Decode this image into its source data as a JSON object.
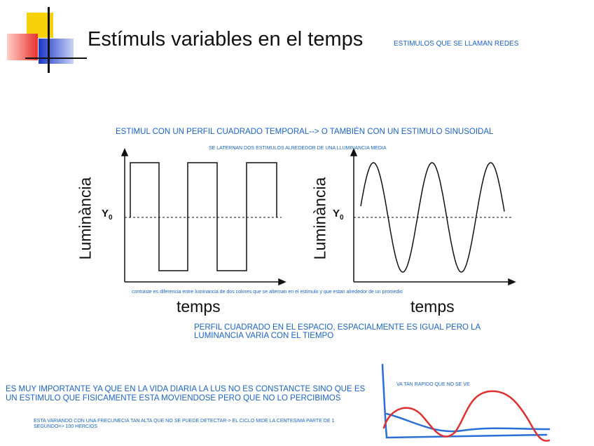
{
  "slide": {
    "title": "Estímuls variables en el temps",
    "header_note": "ESTIMULOS QUE SE LLAMAN REDES",
    "subtitle_note": "ESTIMUL CON UN PERFIL CUADRADO TEMPORAL--> O TAMBIÉN CON UN ESTIMULO SINUSOIDAL",
    "mean_note": "SE LATERNAN DOS ESTIMULOS ALREDEDOR DE UNA LLUMINANCIA MEDIA",
    "contrast_note": "contraste es diferencia entre luminancia de dos colores que se alternan en el estimulo y que estan alrededor de un promedio",
    "profile_note": "PERFIL CUADRADO EN EL ESPACIO, ESPACIALMENTE ES IGUAL PERO LA LUMINANCIA VARIA CON EL TIEMPO",
    "importance_note": "ES MUY IMPORTANTE YA QUE EN LA VIDA DIARIA LA LUS NO ES CONSTANCTE SINO QUE ES UN ESTIMULO QUE FISICAMENTE ESTA MOVIENDOSE PERO QUE NO LO PERCIBIMOS",
    "frequency_note": "ESTA VARIANDO CON UNA FRECUNECIA TAN ALTA QUE NO SE PUEDE DETECTAR-> EL CICLO MIDE LA CENTESIMA PARTE DE 1 SEGUNDO=> 100 HERCIOS",
    "sketch_note": "VA TAN RAPIDO QUE NO SE  VE"
  },
  "graphs": {
    "square": {
      "ylabel": "Luminància",
      "xlabel": "temps",
      "mean_label": "Y",
      "mean_sub": "0"
    },
    "sine": {
      "ylabel": "Luminància",
      "xlabel": "temps",
      "mean_label": "Y",
      "mean_sub": "0"
    }
  },
  "colors": {
    "annotation": "#1a63c9",
    "sketch_red": "#e03030",
    "sketch_blue": "#2a6fd8",
    "deco_yellow": "#f7d10a",
    "deco_red": "#e8322c",
    "deco_blue": "#1b35c8"
  }
}
